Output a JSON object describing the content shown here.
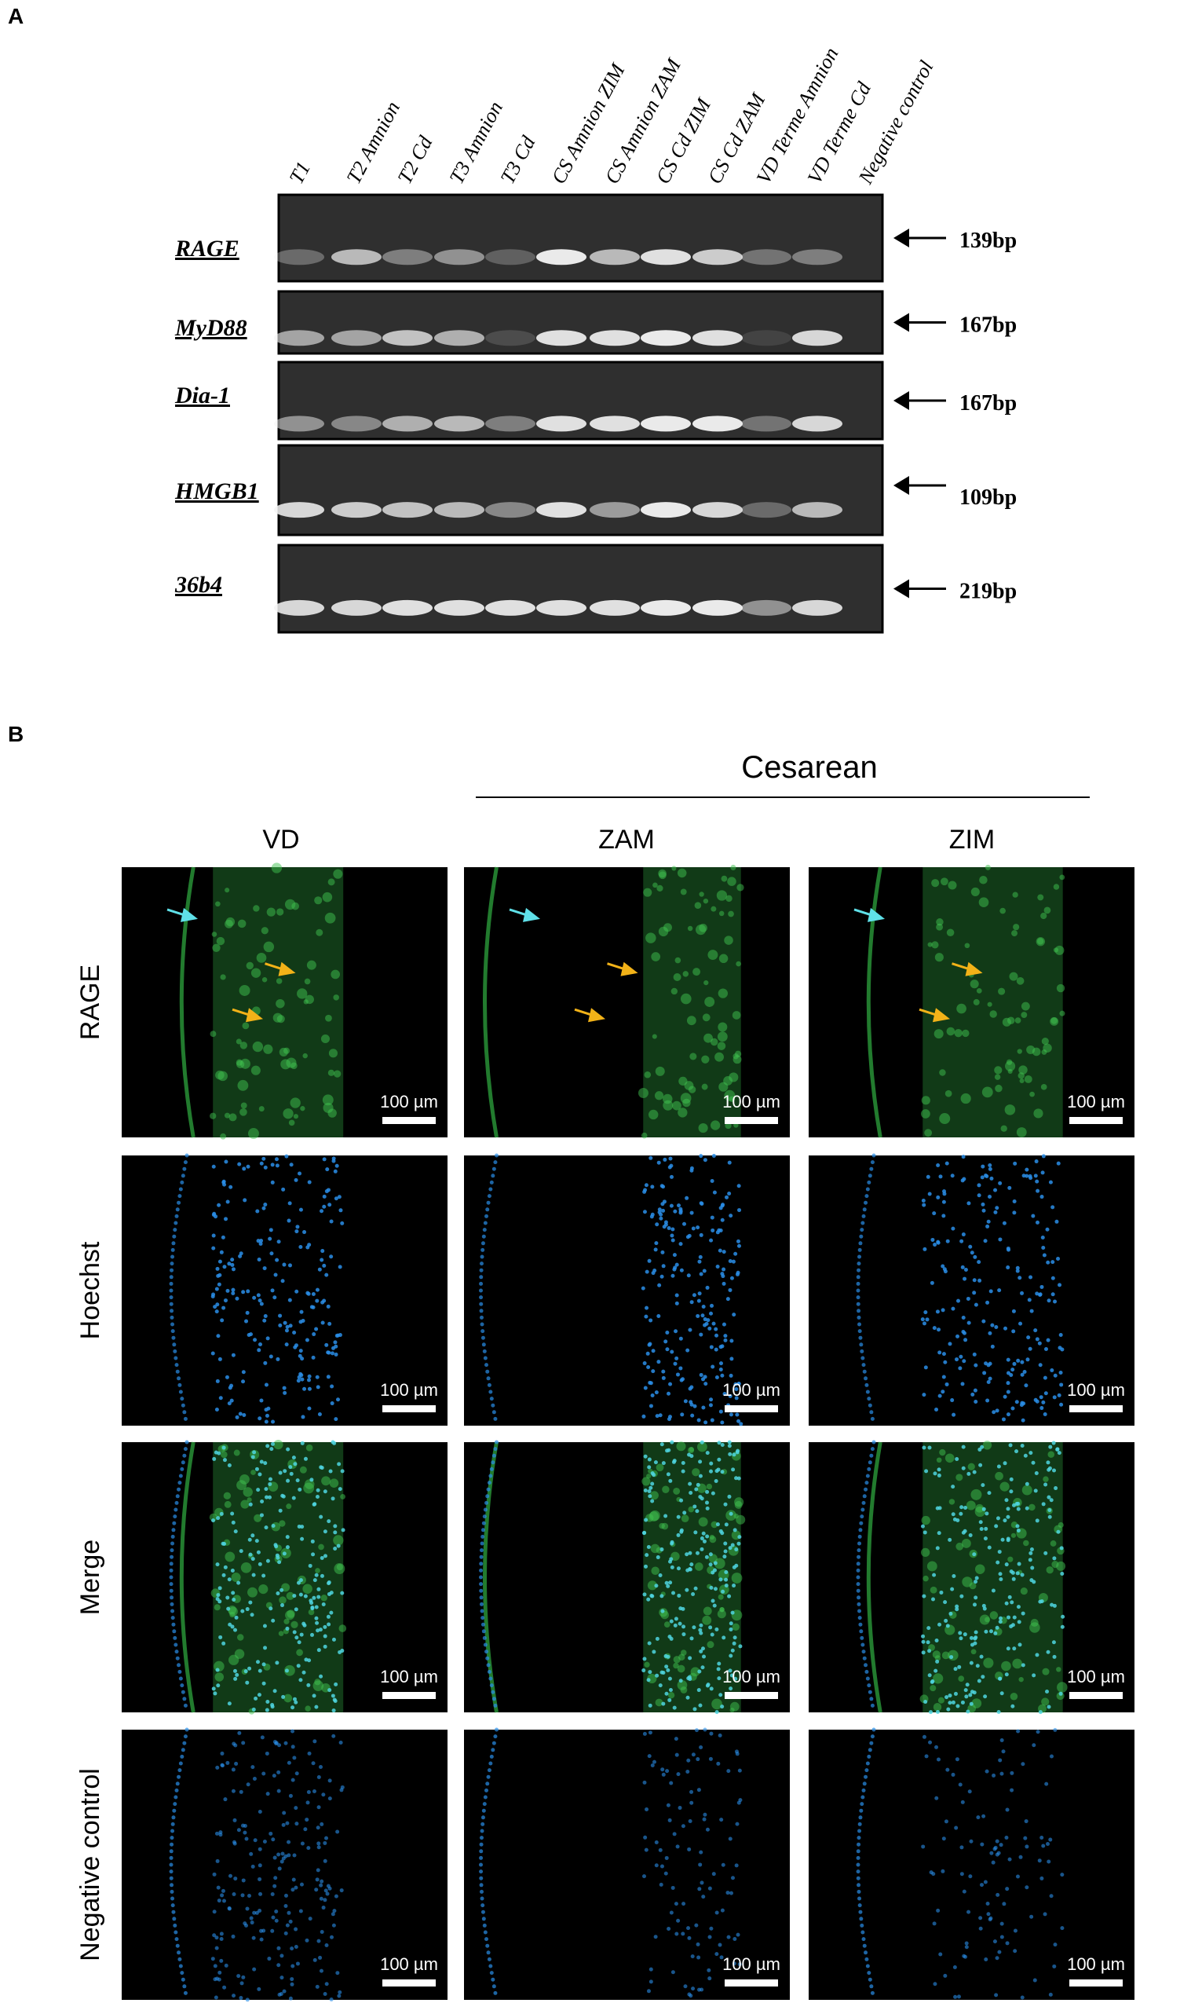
{
  "panel_a": {
    "label": "A",
    "lanes": [
      "T1",
      "T2 Amnion",
      "T2 Cd",
      "T3 Amnion",
      "T3 Cd",
      "CS Amnion ZIM",
      "CS Amnion ZAM",
      "CS Cd ZIM",
      "CS Cd ZAM",
      "VD Terme Amnion",
      "VD Terme Cd",
      "Negative control"
    ],
    "genes": [
      {
        "name": "RAGE",
        "size": "139bp"
      },
      {
        "name": "MyD88",
        "size": "167bp"
      },
      {
        "name": "Dia-1",
        "size": "167bp"
      },
      {
        "name": "HMGB1",
        "size": "109bp"
      },
      {
        "name": "36b4",
        "size": "219bp"
      }
    ]
  },
  "panel_b": {
    "label": "B",
    "group_label": "Cesarean",
    "columns": [
      "VD",
      "ZAM",
      "ZIM"
    ],
    "rows": [
      "RAGE",
      "Hoechst",
      "Merge",
      "Negative control"
    ],
    "scale_bar": "100 µm"
  }
}
